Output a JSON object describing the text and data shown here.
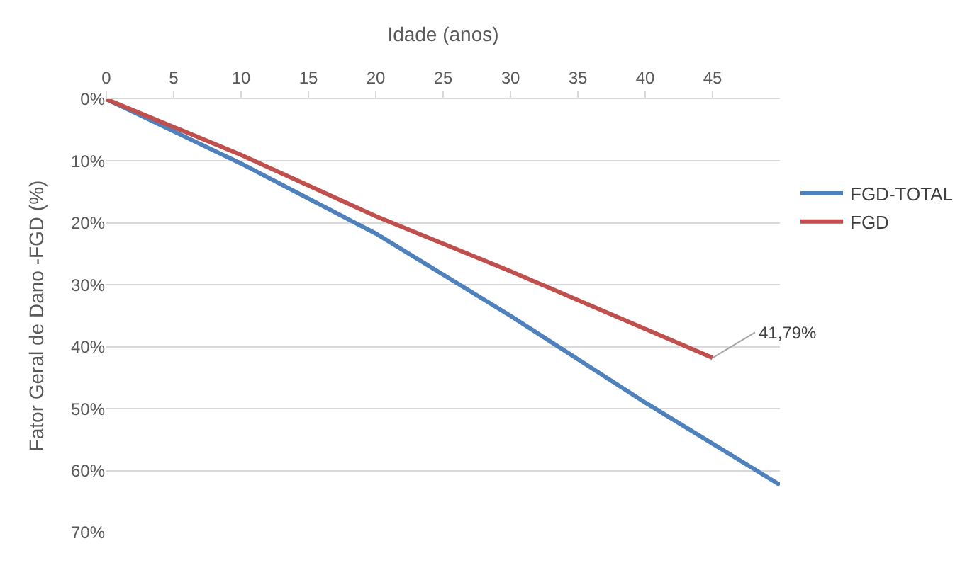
{
  "chart_data": {
    "type": "line",
    "xlabel": "Idade (anos)",
    "ylabel": "Fator Geral de Dano -FGD (%)",
    "series": [
      {
        "name": "FGD-TOTAL",
        "color": "#4f81bd",
        "x": [
          0,
          10,
          20,
          30,
          40,
          50
        ],
        "values": [
          0,
          10.4,
          21.7,
          35,
          49,
          62.3
        ]
      },
      {
        "name": "FGD",
        "color": "#c0504d",
        "x": [
          0,
          10,
          20,
          30,
          45
        ],
        "values": [
          0,
          9,
          18.9,
          27.8,
          41.79
        ]
      }
    ],
    "annotations": [
      {
        "text": "41,79%",
        "x": 45,
        "y": 41.79
      }
    ],
    "xlim": [
      0,
      50
    ],
    "xticks": [
      0,
      5,
      10,
      15,
      20,
      25,
      30,
      35,
      40,
      45
    ],
    "ylim": [
      70,
      0
    ],
    "yticks": [
      {
        "value": 0,
        "label": "0%"
      },
      {
        "value": 10,
        "label": "10%"
      },
      {
        "value": 20,
        "label": "20%"
      },
      {
        "value": 30,
        "label": "30%"
      },
      {
        "value": 40,
        "label": "40%"
      },
      {
        "value": 50,
        "label": "50%"
      },
      {
        "value": 60,
        "label": "60%"
      },
      {
        "value": 70,
        "label": "70%"
      }
    ],
    "grid": "y",
    "legend": "right",
    "marker": "none",
    "line_style": "solid"
  }
}
